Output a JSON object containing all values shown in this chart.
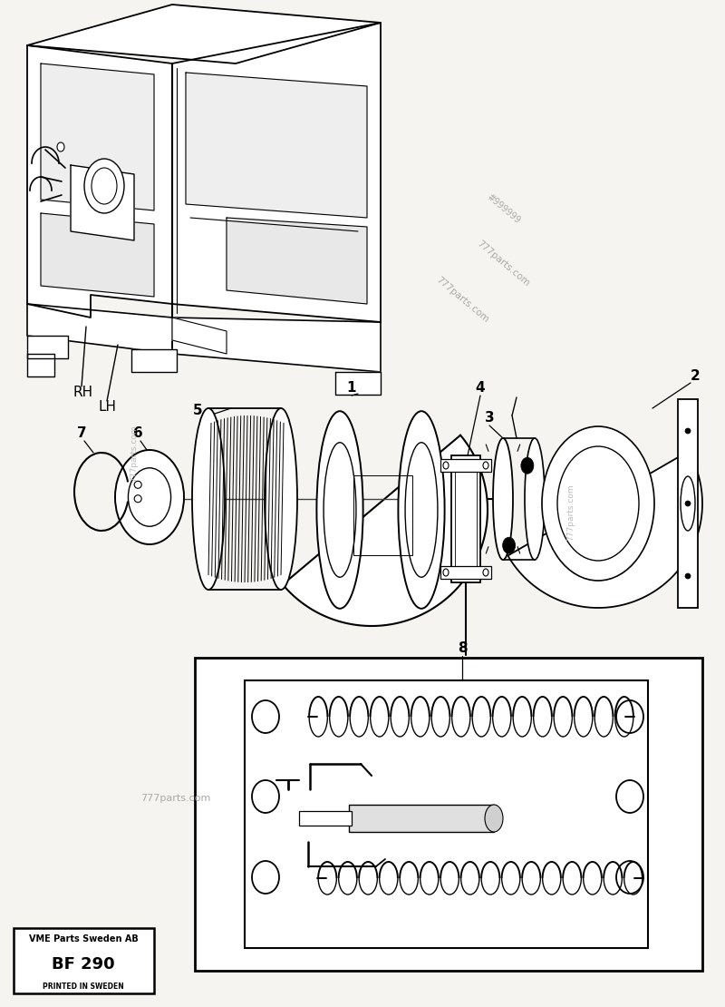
{
  "bg_color": "#f5f4f0",
  "watermark_color": "#999999",
  "label_RH": "RH",
  "label_LH": "LH",
  "part_labels": [
    "1",
    "2",
    "3",
    "4",
    "5",
    "6",
    "7",
    "8"
  ],
  "footer_text1": "VME Parts Sweden AB",
  "footer_text2": "BF 290",
  "footer_text3": "PRINTED IN SWEDEN"
}
